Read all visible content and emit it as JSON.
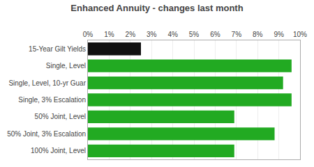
{
  "chart_data": {
    "type": "bar",
    "orientation": "horizontal",
    "title": "Enhanced Annuity - changes last month",
    "categories": [
      "15-Year Gilt Yields",
      "Single, Level",
      "Single, Level, 10-yr Guar",
      "Single, 3% Escalation",
      "50% Joint, Level",
      "50% Joint, 3% Escalation",
      "100% Joint, Level"
    ],
    "values": [
      2.5,
      9.6,
      9.2,
      9.6,
      6.9,
      8.8,
      6.9
    ],
    "colors": [
      "#111111",
      "#22aa22",
      "#22aa22",
      "#22aa22",
      "#22aa22",
      "#22aa22",
      "#22aa22"
    ],
    "xlim": [
      0,
      10
    ],
    "xticks": [
      {
        "value": 0,
        "label": "0%"
      },
      {
        "value": 1,
        "label": "1%"
      },
      {
        "value": 2,
        "label": "2%"
      },
      {
        "value": 3,
        "label": "3%"
      },
      {
        "value": 4,
        "label": "4%"
      },
      {
        "value": 5,
        "label": "5%"
      },
      {
        "value": 6,
        "label": "6%"
      },
      {
        "value": 7,
        "label": "7%"
      },
      {
        "value": 8,
        "label": "8%"
      },
      {
        "value": 9,
        "label": "9%"
      },
      {
        "value": 10,
        "label": "10%"
      }
    ],
    "grid": true
  }
}
